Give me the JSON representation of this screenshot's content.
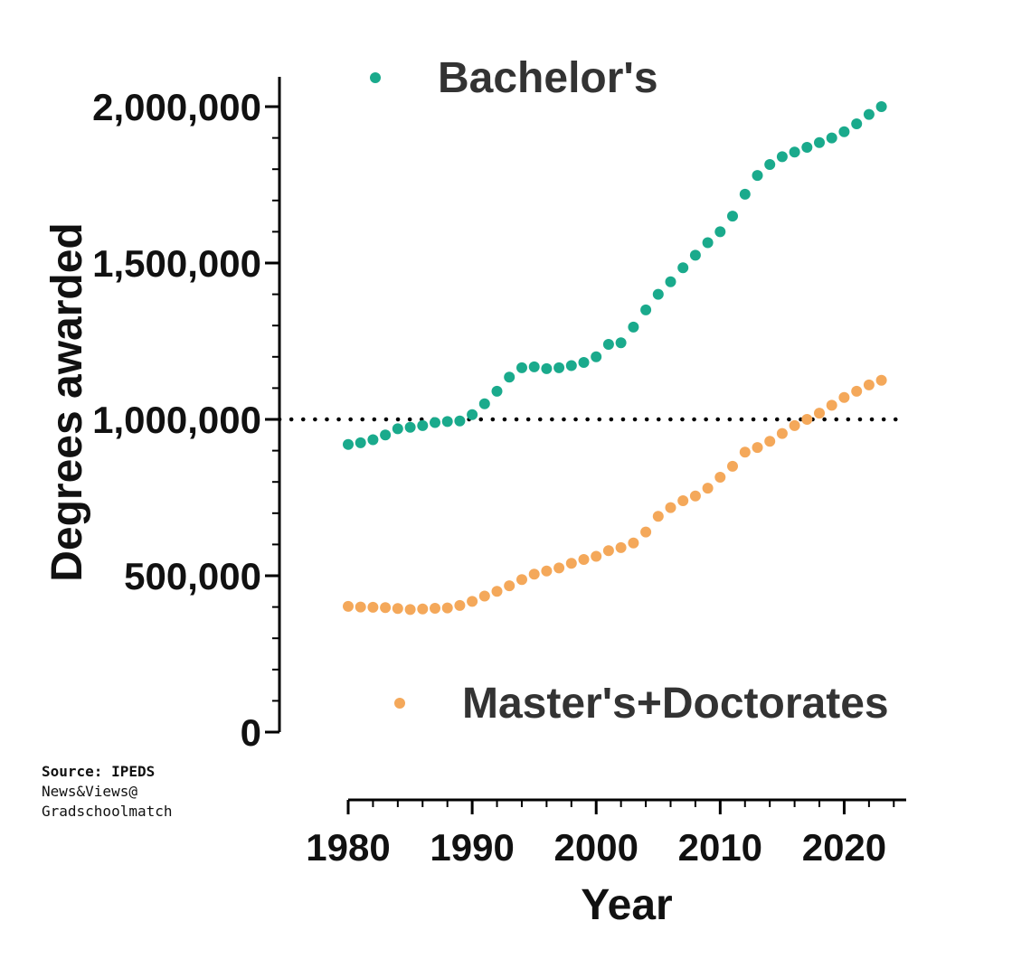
{
  "chart_data": {
    "type": "scatter",
    "xlabel": "Year",
    "ylabel": "Degrees awarded",
    "xlim": [
      1980,
      2025
    ],
    "ylim": [
      0,
      2000000
    ],
    "x_ticks": [
      "1980",
      "1990",
      "2000",
      "2010",
      "2020"
    ],
    "y_ticks": [
      "0",
      "500,000",
      "1,000,000",
      "1,500,000",
      "2,000,000"
    ],
    "reference_line": {
      "y": 1000000,
      "style": "dotted"
    },
    "grid": false,
    "legend": "inline text labels",
    "x": [
      1980,
      1981,
      1982,
      1983,
      1984,
      1985,
      1986,
      1987,
      1988,
      1989,
      1990,
      1991,
      1992,
      1993,
      1994,
      1995,
      1996,
      1997,
      1998,
      1999,
      2000,
      2001,
      2002,
      2003,
      2004,
      2005,
      2006,
      2007,
      2008,
      2009,
      2010,
      2011,
      2012,
      2013,
      2014,
      2015,
      2016,
      2017,
      2018,
      2019,
      2020,
      2021,
      2022,
      2023
    ],
    "series": [
      {
        "name": "Bachelor's",
        "color": "#1aaa8c",
        "values": [
          920000,
          925000,
          935000,
          950000,
          970000,
          975000,
          980000,
          990000,
          993000,
          995000,
          1015000,
          1050000,
          1090000,
          1135000,
          1165000,
          1168000,
          1162000,
          1165000,
          1172000,
          1182000,
          1200000,
          1240000,
          1245000,
          1295000,
          1350000,
          1400000,
          1440000,
          1485000,
          1525000,
          1565000,
          1600000,
          1650000,
          1720000,
          1780000,
          1815000,
          1840000,
          1855000,
          1870000,
          1885000,
          1900000,
          1920000,
          1945000,
          1975000,
          2000000
        ]
      },
      {
        "name": "Master's+Doctorates",
        "color": "#f4a85a",
        "values": [
          402000,
          400000,
          399000,
          398000,
          395000,
          392000,
          394000,
          396000,
          397000,
          405000,
          418000,
          435000,
          450000,
          468000,
          488000,
          505000,
          515000,
          525000,
          540000,
          552000,
          562000,
          580000,
          590000,
          605000,
          640000,
          690000,
          718000,
          740000,
          755000,
          780000,
          815000,
          850000,
          895000,
          910000,
          930000,
          955000,
          980000,
          1000000,
          1020000,
          1045000,
          1070000,
          1090000,
          1110000,
          1125000
        ]
      }
    ],
    "annotations": {
      "source_label": "Source: IPEDS",
      "credit_line1": "News&Views@",
      "credit_line2": "Gradschoolmatch"
    }
  }
}
